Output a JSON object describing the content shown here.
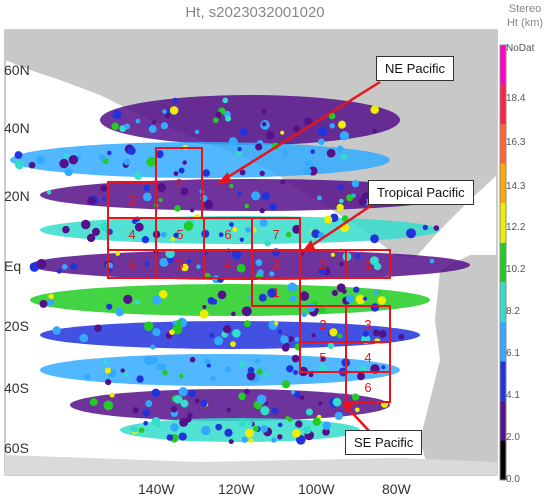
{
  "title": "Ht, s2023032001020",
  "colorbar": {
    "title_line1": "Stereo",
    "title_line2": "Ht (km)",
    "labels": [
      "NoDat",
      "18.4",
      "16.3",
      "14.3",
      "12.2",
      "10.2",
      "8.2",
      "6.1",
      "4.1",
      "2.0",
      "0.0"
    ],
    "colors": [
      "#ff00cc",
      "#ff2244",
      "#ff6633",
      "#ffaa00",
      "#eeee00",
      "#22cc22",
      "#33ddcc",
      "#33aaff",
      "#2233dd",
      "#55118a",
      "#000000"
    ]
  },
  "lat_labels": [
    "60N",
    "40N",
    "20N",
    "Eq",
    "20S",
    "40S",
    "60S"
  ],
  "lon_labels": [
    "140W",
    "120W",
    "100W",
    "80W"
  ],
  "callouts": {
    "ne_pacific": "NE Pacific",
    "tropical_pacific": "Tropical Pacific",
    "se_pacific": "SE Pacific"
  },
  "boxes": [
    {
      "label": "3"
    },
    {
      "label": "2"
    },
    {
      "label": "4"
    },
    {
      "label": "5"
    },
    {
      "label": "6"
    },
    {
      "label": "7"
    },
    {
      "label": "6"
    },
    {
      "label": "5"
    },
    {
      "label": "4"
    },
    {
      "label": "3"
    },
    {
      "label": "2"
    },
    {
      "label": "1"
    },
    {
      "label": "1"
    },
    {
      "label": "2"
    },
    {
      "label": "3"
    },
    {
      "label": "5"
    },
    {
      "label": "4"
    },
    {
      "label": "6"
    }
  ],
  "colors": {
    "box": "#e8141c",
    "land": "#c8c8c8",
    "ocean_bg": "#ffffff"
  }
}
